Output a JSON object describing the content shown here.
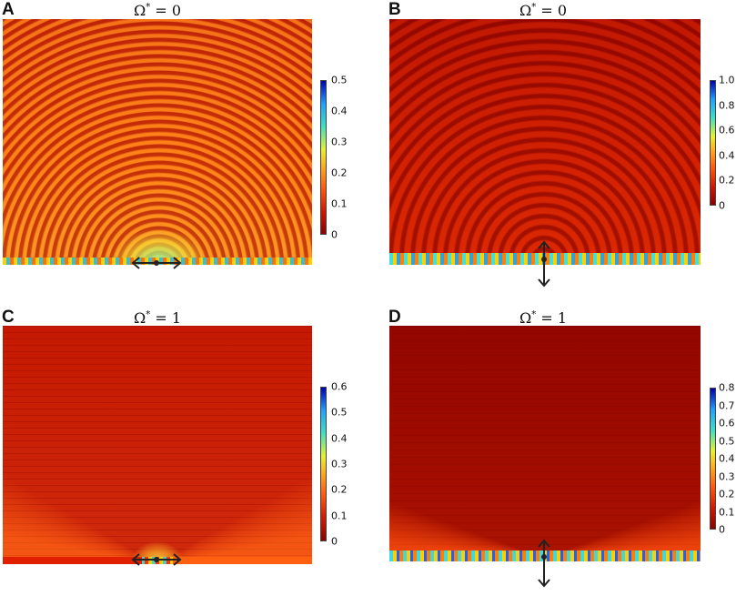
{
  "panels": [
    {
      "letter": "A",
      "title_symbol": "Ω",
      "title_sup": "*",
      "title_eq": " = 0",
      "colorbar_ticks": [
        "0.5",
        "0.4",
        "0.3",
        "0.2",
        "0.1",
        "0"
      ],
      "excitation": "horizontal"
    },
    {
      "letter": "B",
      "title_symbol": "Ω",
      "title_sup": "*",
      "title_eq": " = 0",
      "colorbar_ticks": [
        "1.0",
        "0.8",
        "0.6",
        "0.4",
        "0.2",
        "0"
      ],
      "excitation": "vertical"
    },
    {
      "letter": "C",
      "title_symbol": "Ω",
      "title_sup": "*",
      "title_eq": " = 1",
      "colorbar_ticks": [
        "0.6",
        "0.5",
        "0.4",
        "0.3",
        "0.2",
        "0.1",
        "0"
      ],
      "excitation": "horizontal"
    },
    {
      "letter": "D",
      "title_symbol": "Ω",
      "title_sup": "*",
      "title_eq": " = 1",
      "colorbar_ticks": [
        "0.8",
        "0.7",
        "0.6",
        "0.5",
        "0.4",
        "0.3",
        "0.2",
        "0.1",
        "0"
      ],
      "excitation": "vertical"
    }
  ],
  "colors": {
    "colormap": [
      "#8b0000",
      "#d11a00",
      "#ff5a10",
      "#ffb020",
      "#e8f030",
      "#40e0c0",
      "#20a0ff",
      "#0000b0"
    ],
    "arrow": "#222222"
  }
}
